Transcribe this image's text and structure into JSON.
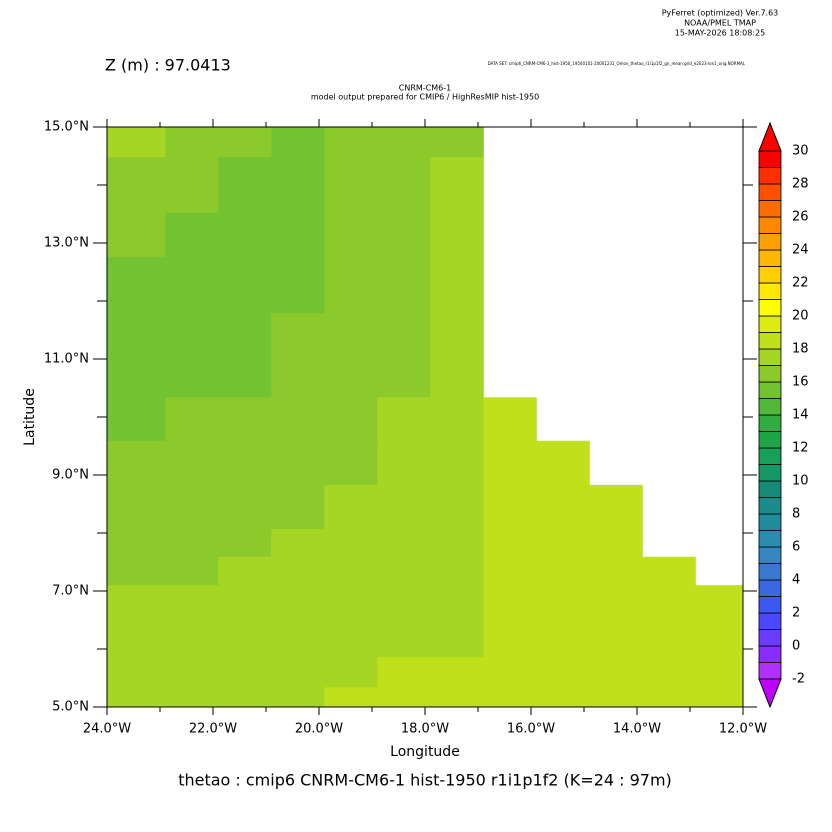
{
  "chart_data": {
    "type": "heatmap",
    "header": [
      "PyFerret (optimized) Ver.7.63",
      "NOAA/PMEL TMAP",
      "15-MAY-2026 18:08:25"
    ],
    "z_label": "Z (m) : 97.0413",
    "dataset": "DATA SET: cmip6_CNRM-CM6-1_hist-1950_19500101-20001231_Omon_thetao_r1i1p1f2_gn_mean.grid_e2023-lon1_orig.NORMAL",
    "title": "CNRM-CM6-1",
    "subtitle": "model output prepared for CMIP6 / HighResMIP hist-1950",
    "x_label": "Longitude",
    "y_label": "Latitude",
    "caption": "thetao : cmip6 CNRM-CM6-1 hist-1950 r1i1p1f2   (K=24 : 97m)",
    "xlim": [
      -24,
      -12
    ],
    "ylim": [
      5,
      15
    ],
    "xticks": [
      {
        "value": -24,
        "label": "24.0°W"
      },
      {
        "value": -22,
        "label": "22.0°W"
      },
      {
        "value": -20,
        "label": "20.0°W"
      },
      {
        "value": -18,
        "label": "18.0°W"
      },
      {
        "value": -16,
        "label": "16.0°W"
      },
      {
        "value": -14,
        "label": "14.0°W"
      },
      {
        "value": -12,
        "label": "12.0°W"
      }
    ],
    "xminor": [
      -23,
      -21,
      -19,
      -17,
      -15,
      -13
    ],
    "yticks": [
      {
        "value": 5,
        "label": "5.0°N"
      },
      {
        "value": 7,
        "label": "7.0°N"
      },
      {
        "value": 9,
        "label": "9.0°N"
      },
      {
        "value": 11,
        "label": "11.0°N"
      },
      {
        "value": 13,
        "label": "13.0°N"
      },
      {
        "value": 15,
        "label": "15.0°N"
      }
    ],
    "yminor": [
      6,
      8,
      10,
      12,
      14
    ],
    "x_edges": [
      -24,
      -22.9,
      -21.9,
      -20.9,
      -19.9,
      -18.9,
      -17.9,
      -16.9,
      -15.9,
      -14.9,
      -13.9,
      -12.9,
      -12
    ],
    "y_edges": [
      15,
      14.48,
      13.52,
      12.76,
      11.79,
      11.07,
      10.34,
      9.59,
      8.83,
      8.07,
      7.59,
      7.1,
      6.34,
      5.86,
      5.34,
      5
    ],
    "values": [
      [
        17.2,
        16.4,
        16.4,
        15.6,
        16.4,
        16.4,
        16.4,
        null,
        null,
        null,
        null,
        null
      ],
      [
        16.4,
        16.4,
        15.6,
        15.6,
        16.4,
        16.4,
        17.4,
        null,
        null,
        null,
        null,
        null
      ],
      [
        16.4,
        15.6,
        15.6,
        15.6,
        16.4,
        16.4,
        17.4,
        null,
        null,
        null,
        null,
        null
      ],
      [
        15.6,
        15.6,
        15.6,
        15.6,
        16.4,
        16.4,
        17.4,
        null,
        null,
        null,
        null,
        null
      ],
      [
        15.6,
        15.6,
        15.6,
        16.4,
        16.4,
        16.4,
        17.4,
        null,
        null,
        null,
        null,
        null
      ],
      [
        15.6,
        15.6,
        15.6,
        16.4,
        16.4,
        16.4,
        17.4,
        null,
        null,
        null,
        null,
        null
      ],
      [
        15.6,
        16.4,
        16.4,
        16.4,
        16.4,
        17.4,
        17.4,
        18.1,
        null,
        null,
        null,
        null
      ],
      [
        16.4,
        16.4,
        16.4,
        16.4,
        16.4,
        17.4,
        17.4,
        18.1,
        18.1,
        null,
        null,
        null
      ],
      [
        16.4,
        16.4,
        16.4,
        16.4,
        17.4,
        17.4,
        17.4,
        18.1,
        18.1,
        18.1,
        null,
        null
      ],
      [
        16.4,
        16.4,
        16.4,
        17.4,
        17.4,
        17.4,
        17.4,
        18.1,
        18.1,
        18.1,
        null,
        null
      ],
      [
        16.4,
        16.4,
        17.4,
        17.4,
        17.4,
        17.4,
        17.4,
        18.1,
        18.1,
        18.1,
        18.1,
        null
      ],
      [
        17.4,
        17.4,
        17.4,
        17.4,
        17.4,
        17.4,
        17.4,
        18.1,
        18.1,
        18.1,
        18.1,
        18.1
      ],
      [
        17.4,
        17.4,
        17.4,
        17.4,
        17.4,
        17.4,
        17.4,
        18.1,
        18.1,
        18.1,
        18.1,
        18.1
      ],
      [
        17.4,
        17.4,
        17.4,
        17.4,
        17.4,
        18.1,
        18.1,
        18.1,
        18.1,
        18.1,
        18.1,
        18.1
      ],
      [
        17.4,
        17.4,
        17.4,
        17.4,
        18.1,
        18.1,
        18.1,
        18.1,
        18.1,
        18.1,
        18.1,
        18.1
      ]
    ],
    "colorbar": {
      "levels": [
        -2,
        -1,
        0,
        1,
        2,
        3,
        4,
        5,
        6,
        7,
        8,
        9,
        10,
        11,
        12,
        13,
        14,
        15,
        16,
        17,
        18,
        19,
        20,
        21,
        22,
        23,
        24,
        25,
        26,
        27,
        28,
        29,
        30
      ],
      "colors": [
        "#b030ff",
        "#8a2cff",
        "#6a3cff",
        "#4c48ff",
        "#3c58f0",
        "#3a68e0",
        "#3a78d0",
        "#3886c0",
        "#2a8cae",
        "#1e8c9c",
        "#1a8c8a",
        "#168c78",
        "#169866",
        "#18a056",
        "#20a448",
        "#30ac40",
        "#52b83a",
        "#72c232",
        "#8cca2c",
        "#a6d624",
        "#c0e01c",
        "#dcec10",
        "#ffff00",
        "#ffe800",
        "#ffd000",
        "#ffb800",
        "#ffa000",
        "#ff8800",
        "#ff6c00",
        "#ff5000",
        "#ff3000",
        "#ff0000"
      ],
      "under_color": "#c000ff",
      "over_color": "#ff0000",
      "ticks": [
        -2,
        0,
        2,
        4,
        6,
        8,
        10,
        12,
        14,
        16,
        18,
        20,
        22,
        24,
        26,
        28,
        30
      ]
    }
  }
}
